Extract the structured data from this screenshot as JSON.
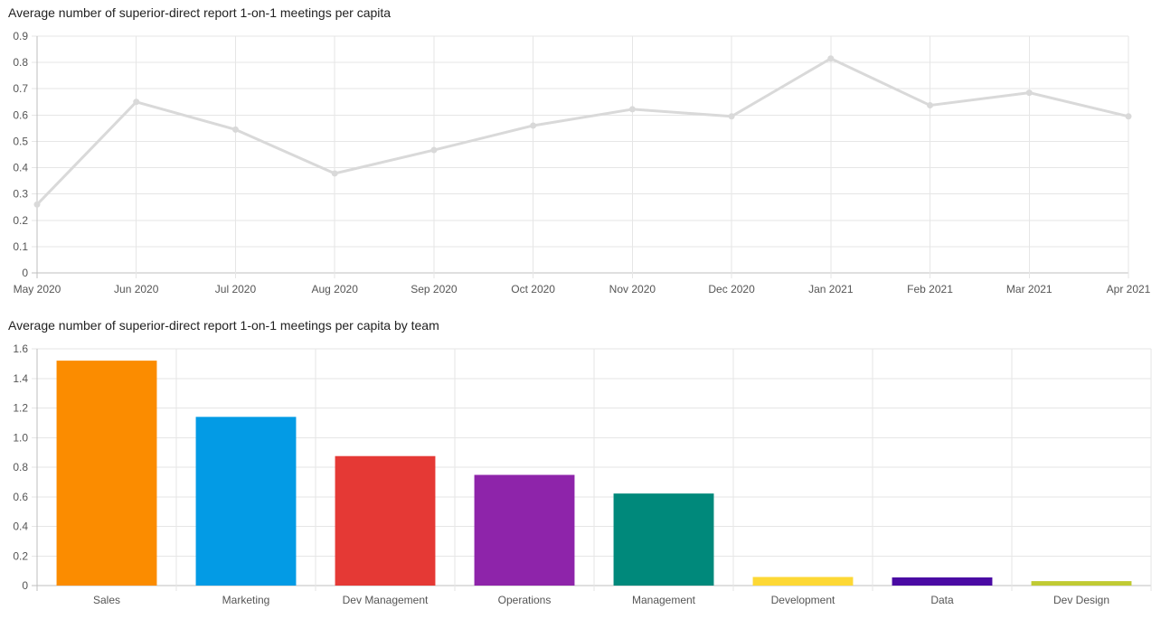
{
  "chart_data": [
    {
      "type": "line",
      "title": "Average number of superior-direct report 1-on-1 meetings per capita",
      "xlabel": "",
      "ylabel": "",
      "categories": [
        "May 2020",
        "Jun 2020",
        "Jul 2020",
        "Aug 2020",
        "Sep 2020",
        "Oct 2020",
        "Nov 2020",
        "Dec 2020",
        "Jan 2021",
        "Feb 2021",
        "Mar 2021",
        "Apr 2021"
      ],
      "values": [
        0.26,
        0.65,
        0.545,
        0.378,
        0.467,
        0.56,
        0.622,
        0.595,
        0.815,
        0.637,
        0.685,
        0.595
      ],
      "ylim": [
        0,
        0.9
      ],
      "yticks": [
        "0",
        "0.1",
        "0.2",
        "0.3",
        "0.4",
        "0.5",
        "0.6",
        "0.7",
        "0.8",
        "0.9"
      ],
      "grid": true,
      "color": "#d9d9d9"
    },
    {
      "type": "bar",
      "title": "Average number of superior-direct report 1-on-1 meetings per capita by team",
      "xlabel": "",
      "ylabel": "",
      "categories": [
        "Sales",
        "Marketing",
        "Dev Management",
        "Operations",
        "Management",
        "Development",
        "Data",
        "Dev Design"
      ],
      "values": [
        1.52,
        1.14,
        0.875,
        0.748,
        0.622,
        0.058,
        0.055,
        0.03
      ],
      "colors": [
        "#fb8c00",
        "#039be5",
        "#e53935",
        "#8e24aa",
        "#00897b",
        "#fdd835",
        "#4a0aa3",
        "#c0ca33"
      ],
      "ylim": [
        0,
        1.6
      ],
      "yticks": [
        "0",
        "0.2",
        "0.4",
        "0.6",
        "0.8",
        "1.0",
        "1.2",
        "1.4",
        "1.6"
      ],
      "grid": true
    }
  ]
}
